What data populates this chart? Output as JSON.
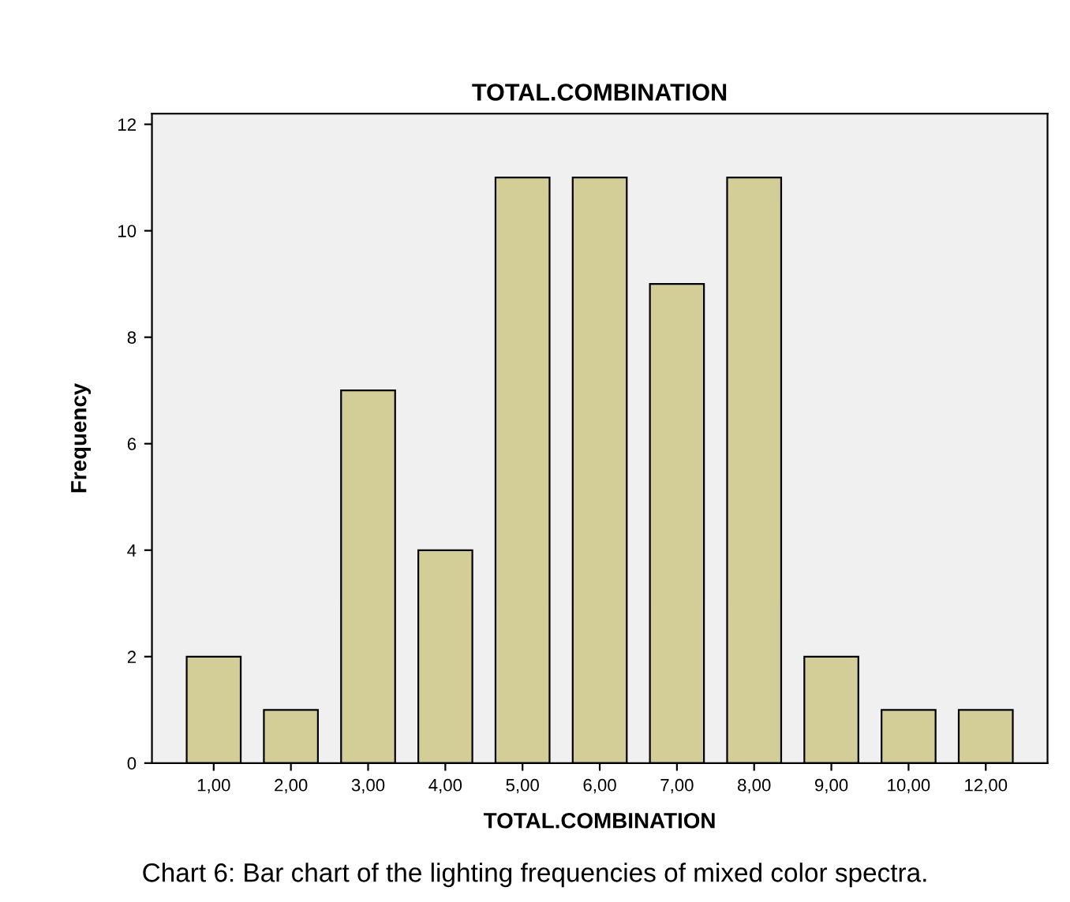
{
  "chart_data": {
    "type": "bar",
    "title": "TOTAL.COMBINATION",
    "xlabel": "TOTAL.COMBINATION",
    "ylabel": "Frequency",
    "categories": [
      "1,00",
      "2,00",
      "3,00",
      "4,00",
      "5,00",
      "6,00",
      "7,00",
      "8,00",
      "9,00",
      "10,00",
      "12,00"
    ],
    "values": [
      2,
      1,
      7,
      4,
      11,
      11,
      9,
      11,
      2,
      1,
      1
    ],
    "color": "#d3ce97",
    "ylim": [
      0,
      12.2
    ],
    "yticks": [
      0,
      2,
      4,
      6,
      8,
      10,
      12
    ],
    "grid": false,
    "legend": false,
    "annotations": [
      "Chart 6: Bar chart of the lighting frequencies of mixed color spectra."
    ]
  }
}
